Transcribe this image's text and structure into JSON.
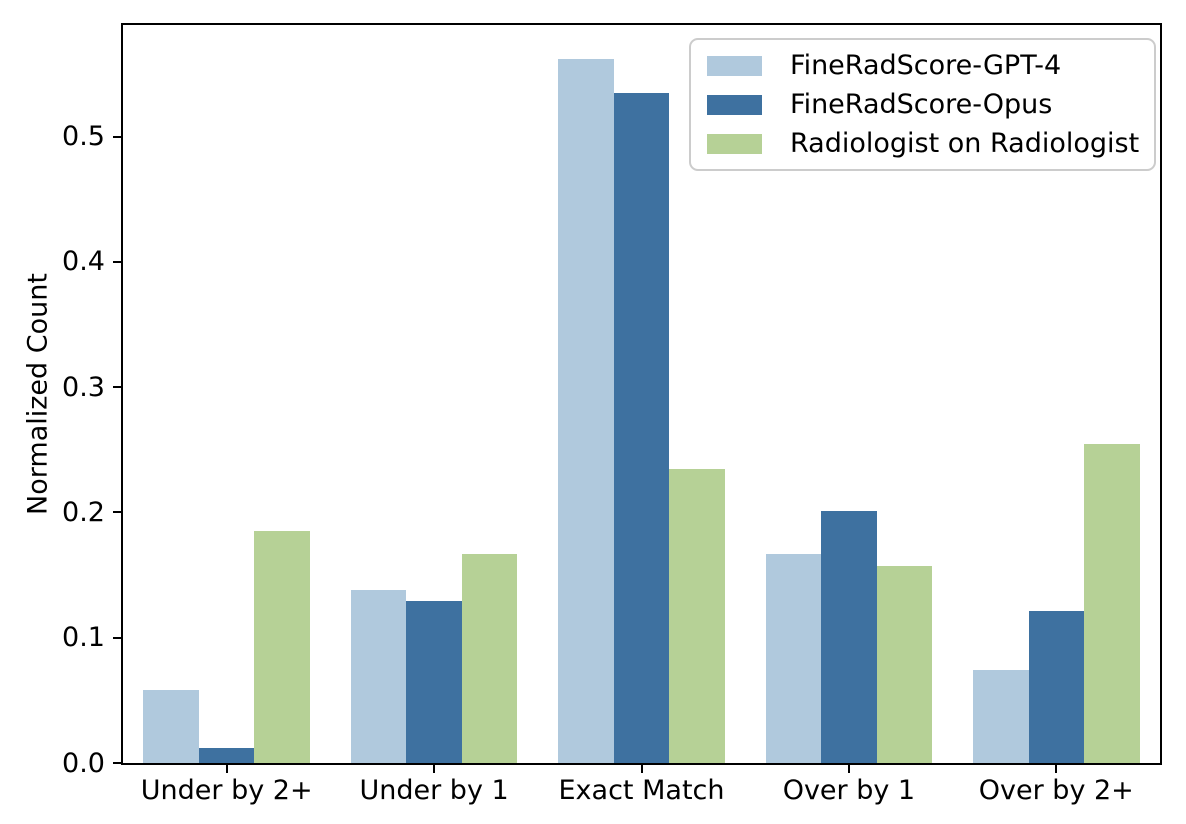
{
  "chart_data": {
    "type": "bar",
    "title": "",
    "xlabel": "",
    "ylabel": "Normalized Count",
    "categories": [
      "Under by 2+",
      "Under by 1",
      "Exact Match",
      "Over by 1",
      "Over by 2+"
    ],
    "series": [
      {
        "name": "FineRadScore-GPT-4",
        "color": "#b0c9dd",
        "values": [
          0.058,
          0.138,
          0.562,
          0.167,
          0.074
        ]
      },
      {
        "name": "FineRadScore-Opus",
        "color": "#3e71a0",
        "values": [
          0.012,
          0.129,
          0.535,
          0.201,
          0.121
        ]
      },
      {
        "name": "Radiologist on Radiologist",
        "color": "#b6d196",
        "values": [
          0.185,
          0.167,
          0.235,
          0.157,
          0.255
        ]
      }
    ],
    "yticks": [
      0.0,
      0.1,
      0.2,
      0.3,
      0.4,
      0.5
    ],
    "ytick_labels": [
      "0.0",
      "0.1",
      "0.2",
      "0.3",
      "0.4",
      "0.5"
    ],
    "ylim": [
      0,
      0.589
    ],
    "legend_position": "upper right",
    "grid": false,
    "colors": {
      "spine": "#000000",
      "legend_border": "#cccccc",
      "background": "#ffffff"
    }
  }
}
